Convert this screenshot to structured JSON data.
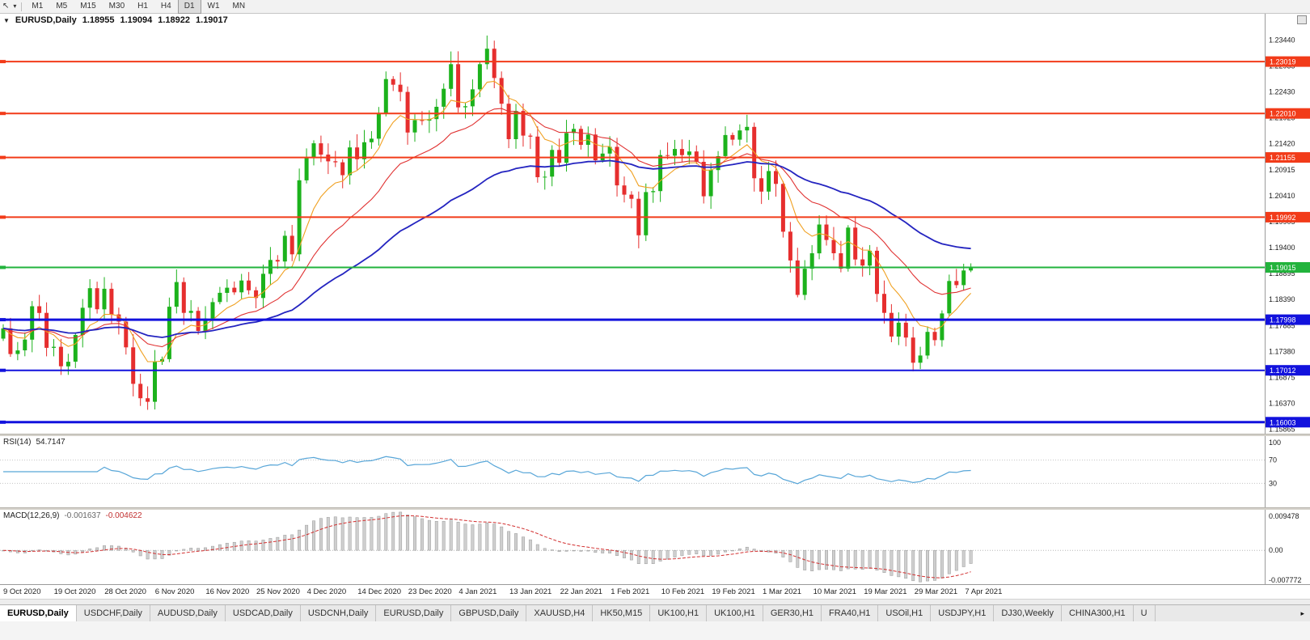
{
  "toolbar": {
    "cursor_icon": "↖",
    "cursor_caret": "▾",
    "timeframes": [
      "M1",
      "M5",
      "M15",
      "M30",
      "H1",
      "H4",
      "D1",
      "W1",
      "MN"
    ],
    "active_timeframe": "D1"
  },
  "chart": {
    "collapse_icon": "▼",
    "symbol": "EURUSD,Daily",
    "ohlc": {
      "open": "1.18955",
      "high": "1.19094",
      "low": "1.18922",
      "close": "1.19017"
    }
  },
  "chart_data": {
    "type": "candlestick",
    "symbol": "EURUSD",
    "timeframe": "Daily",
    "price_range": {
      "min": 1.1578,
      "max": 1.2395
    },
    "first_open": 1.1763,
    "closes": [
      1.1783,
      1.1733,
      1.174,
      1.1761,
      1.1826,
      1.1813,
      1.1745,
      1.1747,
      1.1709,
      1.1718,
      1.177,
      1.1823,
      1.1861,
      1.182,
      1.186,
      1.181,
      1.1796,
      1.1746,
      1.1675,
      1.1647,
      1.164,
      1.1718,
      1.1723,
      1.1825,
      1.1873,
      1.1813,
      1.1817,
      1.1778,
      1.1802,
      1.1834,
      1.1852,
      1.1862,
      1.1853,
      1.1876,
      1.1857,
      1.1842,
      1.1889,
      1.1916,
      1.1913,
      1.1963,
      1.1927,
      1.2071,
      1.2115,
      1.2143,
      1.2121,
      1.2108,
      1.2106,
      1.2081,
      1.2135,
      1.2112,
      1.2145,
      1.2152,
      1.2202,
      1.2268,
      1.2257,
      1.2243,
      1.2164,
      1.2188,
      1.2187,
      1.219,
      1.2214,
      1.2249,
      1.2297,
      1.2213,
      1.2215,
      1.2248,
      1.2297,
      1.2327,
      1.227,
      1.222,
      1.2151,
      1.2206,
      1.2158,
      1.2156,
      1.2077,
      1.2078,
      1.213,
      1.2105,
      1.2163,
      1.2171,
      1.214,
      1.216,
      1.211,
      1.2123,
      1.2136,
      1.2061,
      1.2043,
      1.2035,
      1.1964,
      1.2048,
      1.205,
      1.212,
      1.2119,
      1.2132,
      1.212,
      1.2127,
      1.2107,
      1.204,
      1.2091,
      1.2118,
      1.2159,
      1.215,
      1.2168,
      1.2175,
      1.2075,
      1.2049,
      1.2089,
      1.2064,
      1.1971,
      1.1915,
      1.1848,
      1.1899,
      1.1929,
      1.1985,
      1.1955,
      1.1929,
      1.1899,
      1.1979,
      1.1917,
      1.1905,
      1.1934,
      1.185,
      1.1813,
      1.1767,
      1.1794,
      1.1765,
      1.1716,
      1.173,
      1.1776,
      1.176,
      1.1812,
      1.1875,
      1.1867,
      1.18955,
      1.19017
    ],
    "current_bar": {
      "open": 1.18955,
      "high": 1.19094,
      "low": 1.18922,
      "close": 1.19017
    },
    "candle_colors": {
      "bull": "#1cb21c",
      "bear": "#e62e2e"
    },
    "date_labels": [
      "9 Oct 2020",
      "19 Oct 2020",
      "28 Oct 2020",
      "6 Nov 2020",
      "16 Nov 2020",
      "25 Nov 2020",
      "4 Dec 2020",
      "14 Dec 2020",
      "23 Dec 2020",
      "4 Jan 2021",
      "13 Jan 2021",
      "22 Jan 2021",
      "1 Feb 2021",
      "10 Feb 2021",
      "19 Feb 2021",
      "1 Mar 2021",
      "10 Mar 2021",
      "19 Mar 2021",
      "29 Mar 2021",
      "7 Apr 2021"
    ],
    "price_axis_labels": [
      "1.23440",
      "1.22935",
      "1.22430",
      "1.21925",
      "1.21420",
      "1.20915",
      "1.20410",
      "1.19905",
      "1.19400",
      "1.18895",
      "1.18390",
      "1.17885",
      "1.17380",
      "1.16875",
      "1.16370",
      "1.15865"
    ],
    "hlines": [
      {
        "price": 1.23019,
        "label": "1.23019",
        "color": "#f23b19",
        "width": 2
      },
      {
        "price": 1.2201,
        "label": "1.22010",
        "color": "#f23b19",
        "width": 2
      },
      {
        "price": 1.21155,
        "label": "1.21155",
        "color": "#f23b19",
        "width": 2
      },
      {
        "price": 1.19992,
        "label": "1.19992",
        "color": "#f23b19",
        "width": 2
      },
      {
        "price": 1.19015,
        "label": "1.19015",
        "color": "#22b33c",
        "width": 2
      },
      {
        "price": 1.17998,
        "label": "1.17998",
        "color": "#1212dd",
        "width": 3
      },
      {
        "price": 1.17012,
        "label": "1.17012",
        "color": "#1212dd",
        "width": 2
      },
      {
        "price": 1.16003,
        "label": "1.16003",
        "color": "#1212dd",
        "width": 3
      }
    ],
    "moving_averages": [
      {
        "name": "fast-ma",
        "period": 8,
        "color": "#f0a020",
        "width": 1.1
      },
      {
        "name": "medium-ma",
        "period": 20,
        "color": "#e03232",
        "width": 1.1
      },
      {
        "name": "slow-ma",
        "period": 50,
        "color": "#2424c0",
        "width": 1.8
      }
    ],
    "rsi": {
      "title": "RSI(14)",
      "value": "54.7147",
      "period": 14,
      "color": "#58a6d8",
      "axis_labels": [
        "100",
        "70",
        "30"
      ],
      "levels": [
        70,
        30
      ]
    },
    "macd": {
      "title": "MACD(12,26,9)",
      "value_main": "-0.001637",
      "value_signal": "-0.004622",
      "fast": 12,
      "slow": 26,
      "signal": 9,
      "axis": {
        "max": 0.009478,
        "mid": "0.00",
        "min": -0.007772
      },
      "axis_labels": {
        "top": "0.009478",
        "mid": "0.00",
        "bottom": "-0.007772"
      },
      "hist_color": "#cfcfcf",
      "hist_outline": "#9a9a9a",
      "signal_color": "#d23030"
    }
  },
  "bottom_tabs": {
    "active_index": 0,
    "tabs": [
      "EURUSD,Daily",
      "USDCHF,Daily",
      "AUDUSD,Daily",
      "USDCAD,Daily",
      "USDCNH,Daily",
      "EURUSD,Daily",
      "GBPUSD,Daily",
      "XAUUSD,H4",
      "HK50,M15",
      "UK100,H1",
      "UK100,H1",
      "GER30,H1",
      "FRA40,H1",
      "USOil,H1",
      "USDJPY,H1",
      "DJ30,Weekly",
      "CHINA300,H1",
      "U"
    ],
    "scroll_icon": "▸"
  }
}
